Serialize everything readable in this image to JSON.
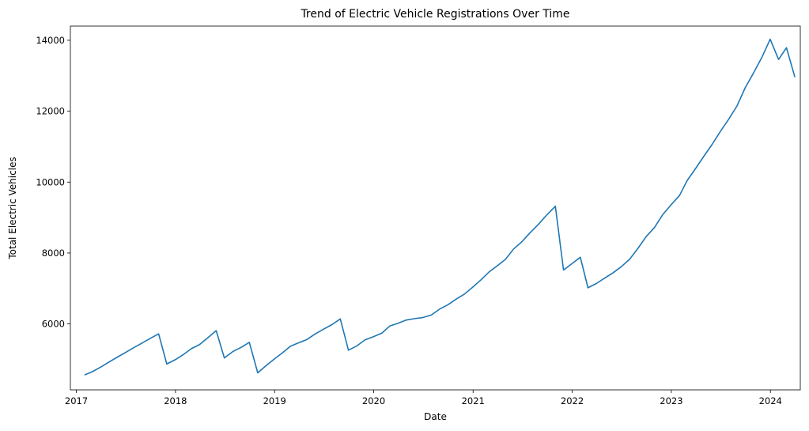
{
  "chart_data": {
    "type": "line",
    "title": "Trend of Electric Vehicle Registrations Over Time",
    "xlabel": "Date",
    "ylabel": "Total Electric Vehicles",
    "xlim": [
      "2016-12-10",
      "2024-04-20"
    ],
    "ylim": [
      4140,
      14400
    ],
    "x_ticks": [
      "2017",
      "2018",
      "2019",
      "2020",
      "2021",
      "2022",
      "2023",
      "2024"
    ],
    "y_ticks": [
      "6000",
      "8000",
      "10000",
      "12000",
      "14000"
    ],
    "grid": false,
    "legend": "none",
    "series": [
      {
        "color": "#1f77b4",
        "x": [
          "2017-01-31",
          "2017-02-28",
          "2017-03-31",
          "2017-04-30",
          "2017-05-31",
          "2017-06-30",
          "2017-07-31",
          "2017-08-31",
          "2017-09-30",
          "2017-10-31",
          "2017-11-30",
          "2017-12-31",
          "2018-01-31",
          "2018-02-28",
          "2018-03-31",
          "2018-04-30",
          "2018-05-31",
          "2018-06-30",
          "2018-07-31",
          "2018-08-31",
          "2018-09-30",
          "2018-10-31",
          "2018-11-30",
          "2018-12-31",
          "2019-01-31",
          "2019-02-28",
          "2019-03-31",
          "2019-04-30",
          "2019-05-31",
          "2019-06-30",
          "2019-07-31",
          "2019-08-31",
          "2019-09-30",
          "2019-10-31",
          "2019-11-30",
          "2019-12-31",
          "2020-01-31",
          "2020-02-29",
          "2020-03-31",
          "2020-04-30",
          "2020-05-31",
          "2020-06-30",
          "2020-07-31",
          "2020-08-31",
          "2020-09-30",
          "2020-10-31",
          "2020-11-30",
          "2020-12-31",
          "2021-01-31",
          "2021-02-28",
          "2021-03-31",
          "2021-04-30",
          "2021-05-31",
          "2021-06-30",
          "2021-07-31",
          "2021-08-31",
          "2021-09-30",
          "2021-10-31",
          "2021-11-30",
          "2021-12-31",
          "2022-01-31",
          "2022-02-28",
          "2022-03-31",
          "2022-04-30",
          "2022-05-31",
          "2022-06-30",
          "2022-07-31",
          "2022-08-31",
          "2022-09-30",
          "2022-10-31",
          "2022-11-30",
          "2022-12-31",
          "2023-01-31",
          "2023-02-28",
          "2023-03-31",
          "2023-04-30",
          "2023-05-31",
          "2023-06-30",
          "2023-07-31",
          "2023-08-31",
          "2023-09-30",
          "2023-10-31",
          "2023-11-30",
          "2023-12-31",
          "2024-01-31",
          "2024-02-29",
          "2024-03-31"
        ],
        "values": [
          4560,
          4650,
          4780,
          4920,
          5060,
          5190,
          5330,
          5460,
          5590,
          5720,
          4870,
          4990,
          5140,
          5300,
          5420,
          5610,
          5810,
          5040,
          5220,
          5340,
          5480,
          4620,
          4820,
          5010,
          5190,
          5370,
          5470,
          5560,
          5720,
          5850,
          5980,
          6140,
          5260,
          5380,
          5550,
          5640,
          5740,
          5940,
          6020,
          6110,
          6150,
          6180,
          6250,
          6420,
          6540,
          6700,
          6840,
          7040,
          7250,
          7460,
          7640,
          7820,
          8120,
          8320,
          8580,
          8820,
          9080,
          9320,
          7520,
          7700,
          7880,
          7020,
          7140,
          7290,
          7440,
          7610,
          7820,
          8130,
          8460,
          8720,
          9080,
          9360,
          9620,
          10040,
          10380,
          10720,
          11060,
          11420,
          11770,
          12150,
          12660,
          13080,
          13510,
          14030,
          13460,
          13790,
          12960
        ]
      }
    ]
  }
}
